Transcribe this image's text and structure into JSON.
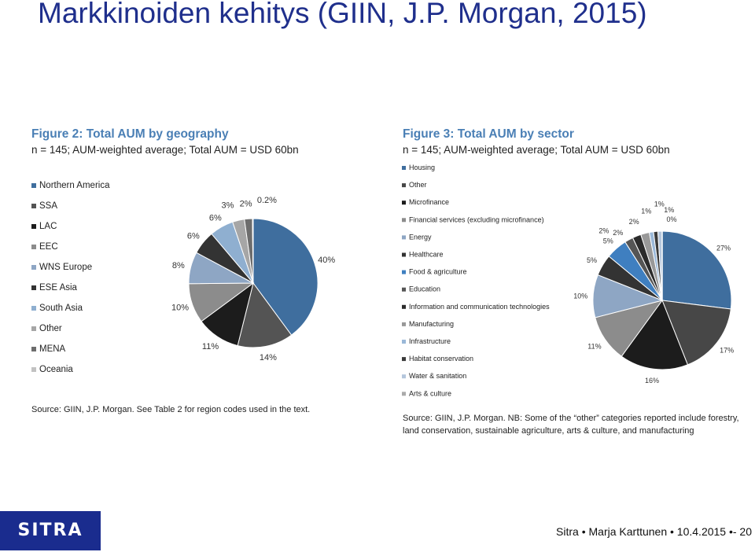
{
  "slide": {
    "title": "Markkinoiden kehitys (GIIN, J.P. Morgan, 2015)",
    "footer": "Sitra  •  Marja Karttunen  •  10.4.2015 •-  20",
    "logo_text": "SITRA"
  },
  "chart_data": [
    {
      "type": "pie",
      "title": "Figure 2: Total AUM by geography",
      "subtitle": "n = 145; AUM-weighted average; Total AUM = USD 60bn",
      "source": "Source: GIIN, J.P. Morgan. See Table 2 for region codes used in the text.",
      "legend_position": "left",
      "labels": [
        "Northern America",
        "SSA",
        "LAC",
        "EEC",
        "WNS Europe",
        "ESE Asia",
        "South Asia",
        "Other",
        "MENA",
        "Oceania"
      ],
      "values": [
        40,
        14,
        11,
        10,
        8,
        6,
        6,
        3,
        2,
        0.2
      ],
      "data_labels": [
        "40%",
        "14%",
        "11%",
        "10%",
        "8%",
        "6%",
        "6%",
        "3%",
        "2%",
        "0.2%"
      ],
      "colors": [
        "#3f6e9e",
        "#545454",
        "#1c1c1c",
        "#8c8c8c",
        "#8ea6c4",
        "#333333",
        "#8fafd0",
        "#a6a6a6",
        "#6d6d6d",
        "#c2c2c2"
      ]
    },
    {
      "type": "pie",
      "title": "Figure 3: Total AUM by sector",
      "subtitle": "n = 145; AUM-weighted average; Total AUM = USD 60bn",
      "source": "Source: GIIN, J.P. Morgan. NB: Some of the “other” categories reported include forestry, land conservation, sustainable agriculture, arts & culture, and manufacturing",
      "legend_position": "left",
      "labels": [
        "Housing",
        "Other",
        "Microfinance",
        "Financial services (excluding microfinance)",
        "Energy",
        "Healthcare",
        "Food & agriculture",
        "Education",
        "Information and communication technologies",
        "Manufacturing",
        "Infrastructure",
        "Habitat conservation",
        "Water & sanitation",
        "Arts & culture"
      ],
      "values": [
        27,
        17,
        16,
        11,
        10,
        5,
        5,
        2,
        2,
        2,
        1,
        1,
        1,
        0
      ],
      "data_labels": [
        "27%",
        "17%",
        "16%",
        "11%",
        "10%",
        "5%",
        "5%",
        "2%",
        "2%",
        "2%",
        "1%",
        "1%",
        "1%",
        "0%"
      ],
      "colors": [
        "#3f6e9e",
        "#474747",
        "#1c1c1c",
        "#8c8c8c",
        "#8ea6c4",
        "#333333",
        "#3f7fc0",
        "#555555",
        "#2b2b2b",
        "#999999",
        "#9ab8d8",
        "#3a3a3a",
        "#b4c6dc",
        "#aaaaaa"
      ]
    }
  ]
}
